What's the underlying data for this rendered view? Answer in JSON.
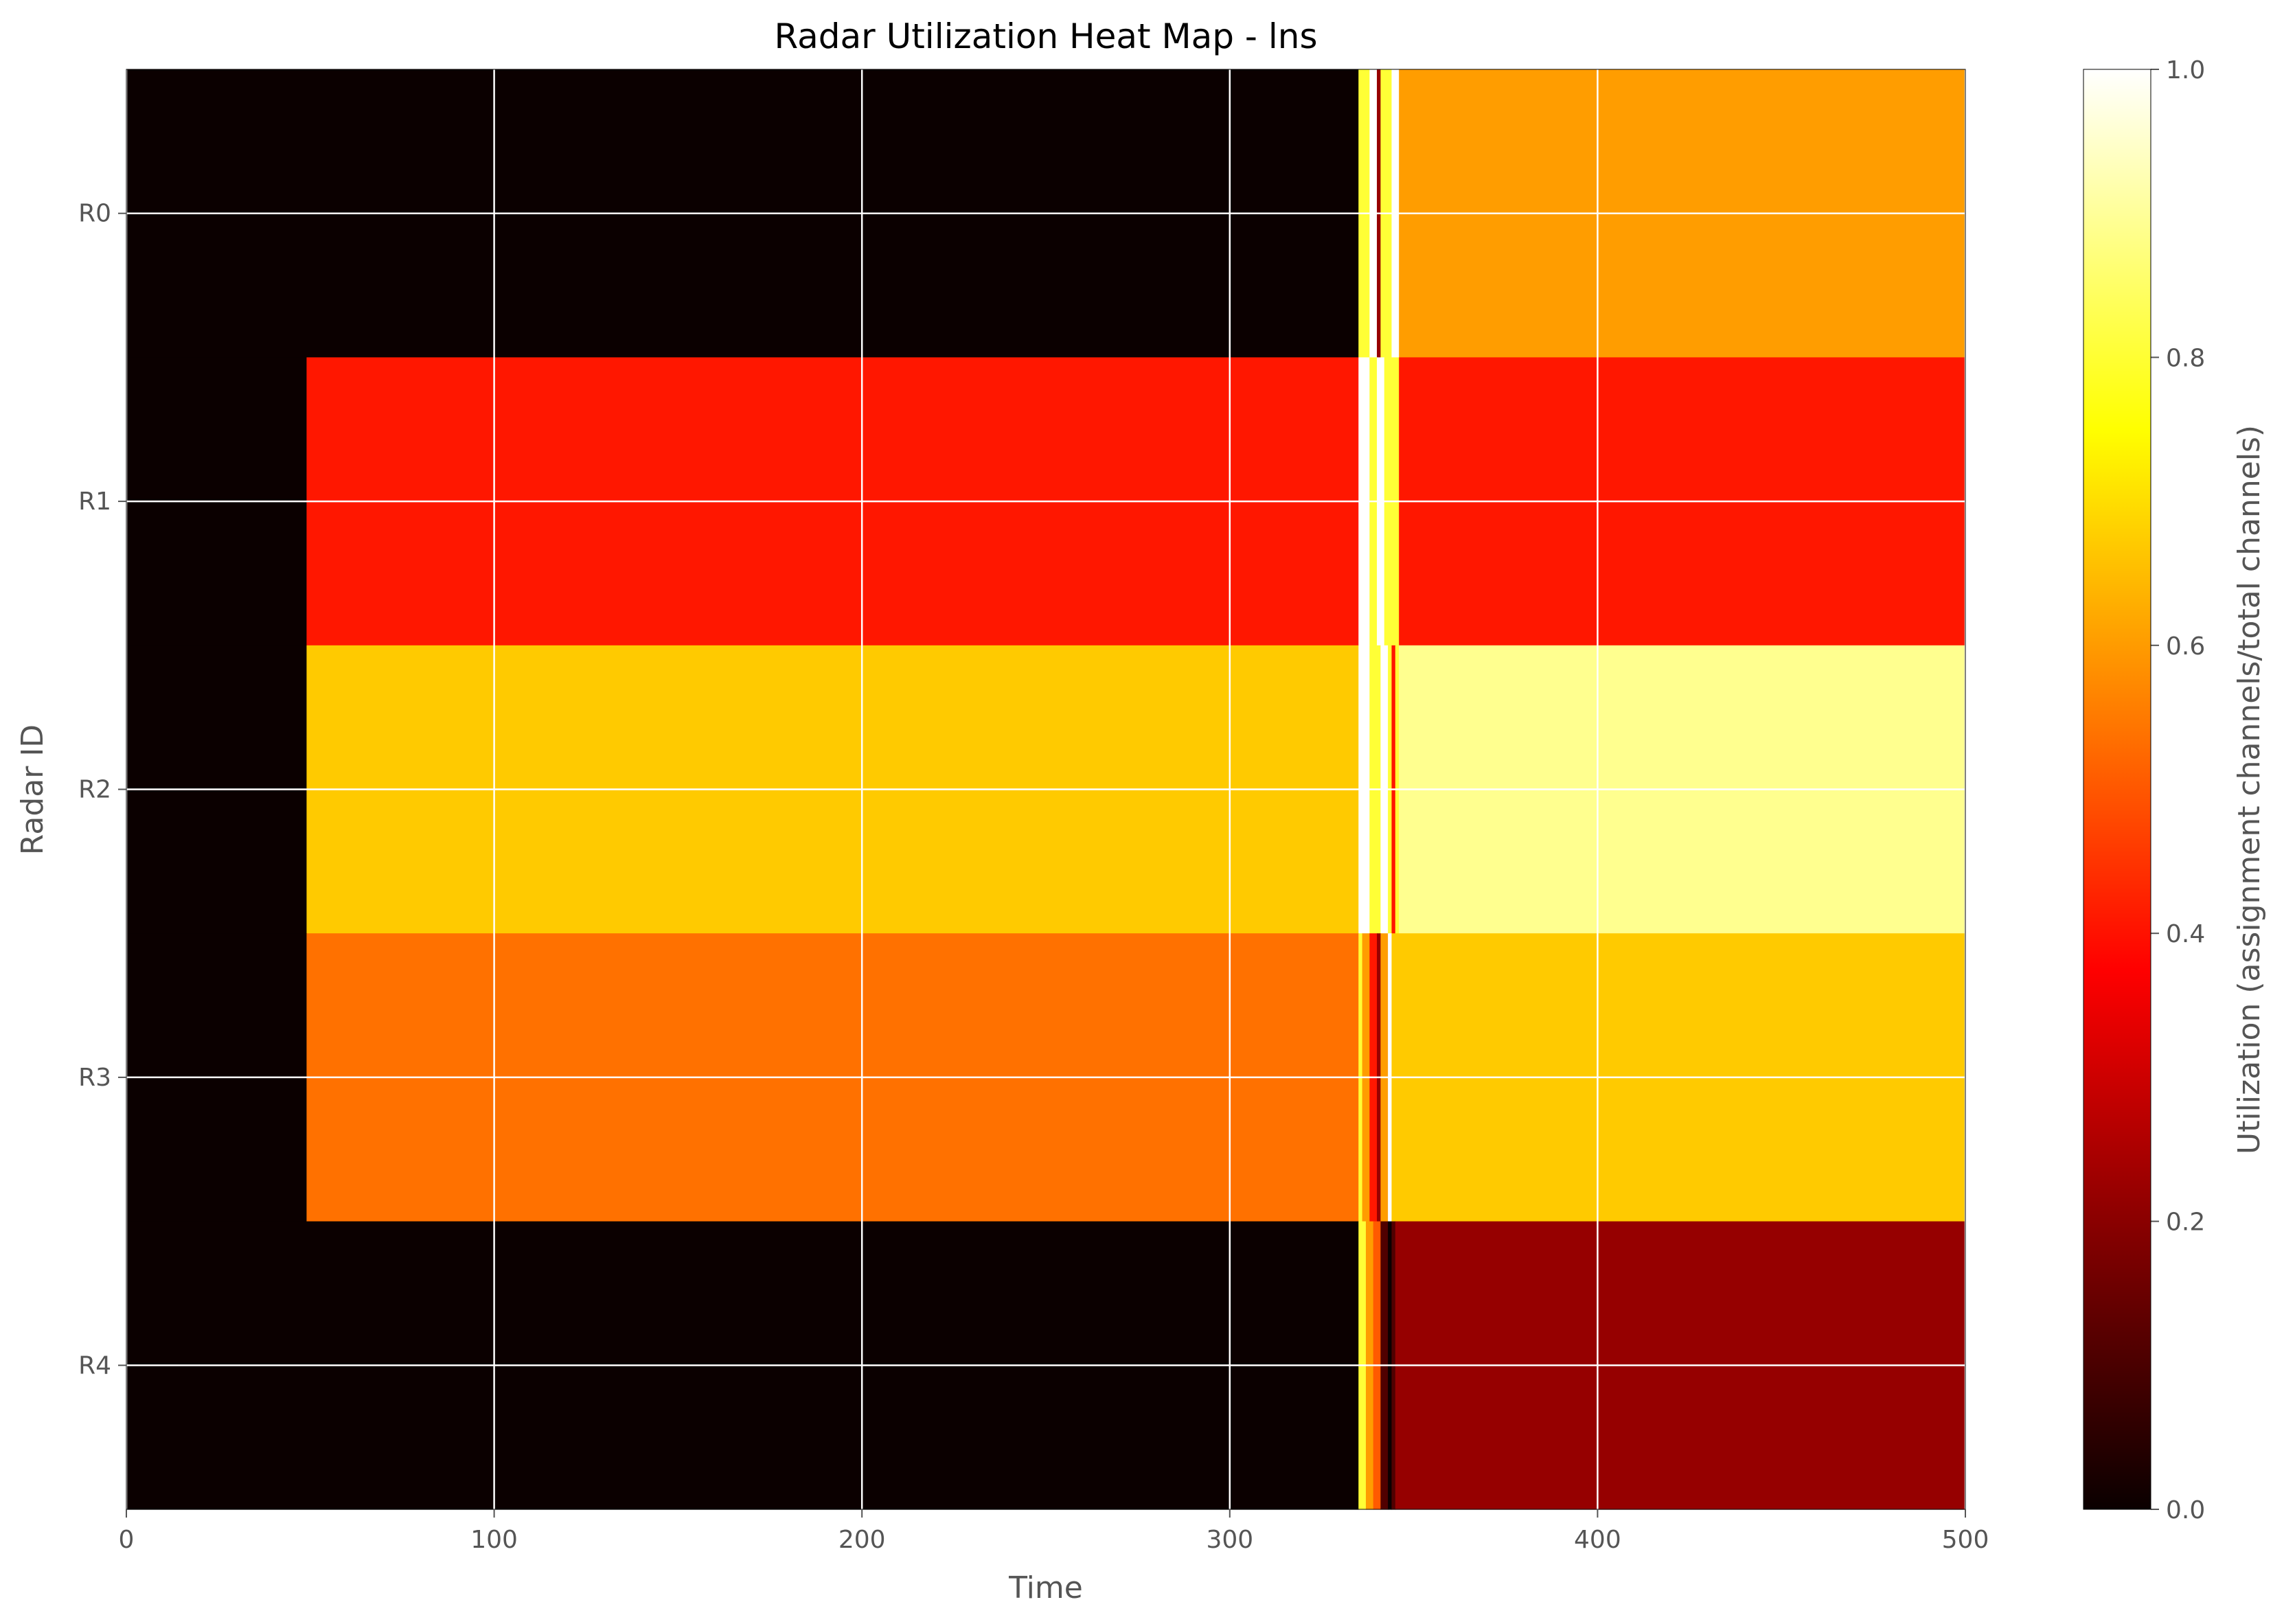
{
  "chart_data": {
    "type": "heatmap",
    "title": "Radar Utilization Heat Map - lns",
    "xlabel": "Time",
    "ylabel": "Radar ID",
    "xlim": [
      0,
      500
    ],
    "x_ticks": [
      0,
      100,
      200,
      300,
      400,
      500
    ],
    "y_categories": [
      "R0",
      "R1",
      "R2",
      "R3",
      "R4"
    ],
    "grid": true,
    "colormap": "hot",
    "colorbar": {
      "label": "Utilization (assignment channels/total channels)",
      "range": [
        0.0,
        1.0
      ],
      "ticks": [
        "0.0",
        "0.2",
        "0.4",
        "0.6",
        "0.8",
        "1.0"
      ]
    },
    "rows": [
      {
        "radar": "R0",
        "segments": [
          {
            "x0": 0,
            "x1": 335,
            "value": 0.0
          },
          {
            "x0": 335,
            "x1": 338,
            "value": 0.8
          },
          {
            "x0": 338,
            "x1": 340,
            "value": 1.0
          },
          {
            "x0": 340,
            "x1": 341,
            "value": 0.2
          },
          {
            "x0": 341,
            "x1": 344,
            "value": 0.8
          },
          {
            "x0": 344,
            "x1": 346,
            "value": 1.0
          },
          {
            "x0": 346,
            "x1": 500,
            "value": 0.6
          }
        ]
      },
      {
        "radar": "R1",
        "segments": [
          {
            "x0": 0,
            "x1": 49,
            "value": 0.0
          },
          {
            "x0": 49,
            "x1": 335,
            "value": 0.4
          },
          {
            "x0": 335,
            "x1": 338,
            "value": 1.0
          },
          {
            "x0": 338,
            "x1": 340,
            "value": 0.8
          },
          {
            "x0": 340,
            "x1": 342,
            "value": 1.0
          },
          {
            "x0": 342,
            "x1": 346,
            "value": 0.8
          },
          {
            "x0": 346,
            "x1": 500,
            "value": 0.4
          }
        ]
      },
      {
        "radar": "R2",
        "segments": [
          {
            "x0": 0,
            "x1": 49,
            "value": 0.0
          },
          {
            "x0": 49,
            "x1": 335,
            "value": 0.6667
          },
          {
            "x0": 335,
            "x1": 338,
            "value": 1.0
          },
          {
            "x0": 338,
            "x1": 341,
            "value": 0.8
          },
          {
            "x0": 341,
            "x1": 343,
            "value": 1.0
          },
          {
            "x0": 343,
            "x1": 344,
            "value": 0.8
          },
          {
            "x0": 344,
            "x1": 345,
            "value": 0.4
          },
          {
            "x0": 345,
            "x1": 346,
            "value": 0.8
          },
          {
            "x0": 346,
            "x1": 500,
            "value": 0.8889
          }
        ]
      },
      {
        "radar": "R3",
        "segments": [
          {
            "x0": 0,
            "x1": 49,
            "value": 0.0
          },
          {
            "x0": 49,
            "x1": 335,
            "value": 0.5333
          },
          {
            "x0": 335,
            "x1": 336,
            "value": 0.8
          },
          {
            "x0": 336,
            "x1": 338,
            "value": 0.6
          },
          {
            "x0": 338,
            "x1": 340,
            "value": 0.4
          },
          {
            "x0": 340,
            "x1": 341,
            "value": 0.2
          },
          {
            "x0": 341,
            "x1": 343,
            "value": 0.6
          },
          {
            "x0": 343,
            "x1": 344,
            "value": 1.0
          },
          {
            "x0": 344,
            "x1": 500,
            "value": 0.6667
          }
        ]
      },
      {
        "radar": "R4",
        "segments": [
          {
            "x0": 0,
            "x1": 335,
            "value": 0.0
          },
          {
            "x0": 335,
            "x1": 337,
            "value": 0.8
          },
          {
            "x0": 337,
            "x1": 339,
            "value": 0.6
          },
          {
            "x0": 339,
            "x1": 341,
            "value": 0.5
          },
          {
            "x0": 341,
            "x1": 343,
            "value": 0.1
          },
          {
            "x0": 343,
            "x1": 344,
            "value": 0.0
          },
          {
            "x0": 344,
            "x1": 345,
            "value": 0.1
          },
          {
            "x0": 345,
            "x1": 500,
            "value": 0.2
          }
        ]
      }
    ]
  }
}
